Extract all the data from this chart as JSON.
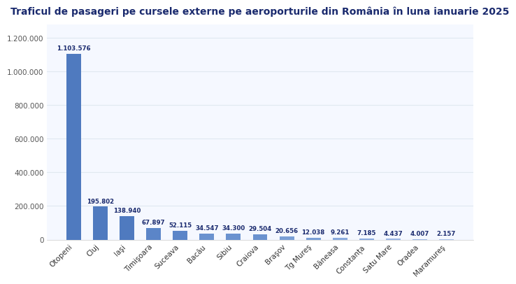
{
  "title": "Traficul de pasageri pe cursele externe pe aeroporturile din România în luna ianuarie 2025",
  "categories": [
    "Otopeni",
    "Cluj",
    "Iaşi",
    "Timişoara",
    "Suceava",
    "Bacău",
    "Sibiu",
    "Craiova",
    "Braşov",
    "Tg Mureş",
    "Băneasa",
    "Constanța",
    "Satu Mare",
    "Oradea",
    "Maramureş"
  ],
  "values": [
    1103576,
    195802,
    138940,
    67897,
    52115,
    34547,
    34300,
    29504,
    20656,
    12038,
    9261,
    7185,
    4437,
    4007,
    2157
  ],
  "labels": [
    "1.103.576",
    "195.802",
    "138.940",
    "67.897",
    "52.115",
    "34.547",
    "34.300",
    "29.504",
    "20.656",
    "12.038",
    "9.261",
    "7.185",
    "4.437",
    "4.007",
    "2.157"
  ],
  "bar_colors": [
    "#4f7abf",
    "#4f7abf",
    "#4f7abf",
    "#5b85c8",
    "#5b85c8",
    "#6a92cf",
    "#6a92cf",
    "#6a92cf",
    "#7a9fd6",
    "#7a9fd6",
    "#8aaade",
    "#8aaade",
    "#9ab5e5",
    "#9ab5e5",
    "#a8bfe8"
  ],
  "background_color": "#ffffff",
  "plot_bg_color": "#f5f8ff",
  "title_color": "#1a2a6e",
  "label_color": "#1a2a6e",
  "axis_label_color": "#555555",
  "grid_color": "#e0e8f0",
  "ylim": [
    0,
    1280000
  ],
  "yticks": [
    0,
    200000,
    400000,
    600000,
    800000,
    1000000,
    1200000
  ],
  "ytick_labels": [
    "0",
    "200.000",
    "400.000",
    "600.000",
    "800.000",
    "1.000.000",
    "1.200.000"
  ],
  "title_fontsize": 10,
  "label_fontsize": 6.2,
  "tick_fontsize": 7.5
}
